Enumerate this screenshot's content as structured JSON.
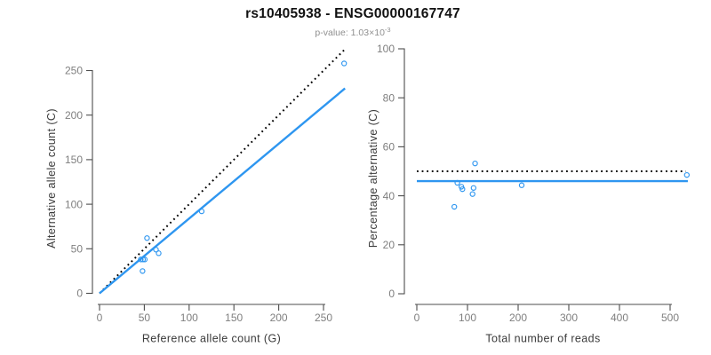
{
  "header": {
    "title": "rs10405938 - ENSG00000167747",
    "subtitle_prefix": "p-value: 1.03×10",
    "subtitle_exponent": "-3"
  },
  "colors": {
    "accent_blue": "#2E96F0",
    "dotted_line": "#000000",
    "axis_line": "#4d4d4d",
    "tick_label": "#7f7f7f",
    "axis_title": "#3a3a3a"
  },
  "chart_data": [
    {
      "type": "scatter",
      "name": "allele-count-scatter",
      "xlabel": "Reference allele count (G)",
      "ylabel": "Alternative allele count (C)",
      "xticks": [
        0,
        50,
        100,
        150,
        200,
        250
      ],
      "yticks": [
        0,
        50,
        100,
        150,
        200,
        250
      ],
      "xlim": [
        0,
        275
      ],
      "ylim": [
        0,
        275
      ],
      "grid": false,
      "points": [
        [
          53,
          62
        ],
        [
          63,
          49
        ],
        [
          66,
          45
        ],
        [
          46,
          38
        ],
        [
          48.5,
          38
        ],
        [
          50.5,
          38
        ],
        [
          48,
          25
        ],
        [
          114,
          92
        ],
        [
          273,
          258
        ]
      ],
      "lines": [
        {
          "name": "identity-line",
          "style": "dotted",
          "color": "#000000",
          "x1": 0,
          "y1": 0,
          "x2": 274,
          "y2": 274
        },
        {
          "name": "fit-line",
          "style": "solid",
          "color": "#2E96F0",
          "x1": 0,
          "y1": 0,
          "x2": 274,
          "y2": 230
        }
      ]
    },
    {
      "type": "scatter",
      "name": "percentage-alternative-scatter",
      "xlabel": "Total number of reads",
      "ylabel": "Percentage alternative (C)",
      "xticks": [
        0,
        100,
        200,
        300,
        400,
        500
      ],
      "yticks": [
        0,
        20,
        40,
        60,
        80,
        100
      ],
      "xlim": [
        0,
        540
      ],
      "ylim": [
        0,
        100
      ],
      "grid": false,
      "points": [
        [
          74,
          35.5
        ],
        [
          80,
          45.3
        ],
        [
          88,
          43.7
        ],
        [
          90,
          42.7
        ],
        [
          110,
          40.7
        ],
        [
          112,
          43.2
        ],
        [
          115,
          53.2
        ],
        [
          207,
          44.3
        ],
        [
          533,
          48.5
        ]
      ],
      "lines": [
        {
          "name": "expected-50pct-line",
          "style": "dotted",
          "color": "#000000",
          "x1": 0,
          "y1": 50,
          "x2": 531,
          "y2": 50
        },
        {
          "name": "mean-percentage-line",
          "style": "solid",
          "color": "#2E96F0",
          "x1": 0,
          "y1": 46,
          "x2": 535,
          "y2": 46
        }
      ]
    }
  ]
}
